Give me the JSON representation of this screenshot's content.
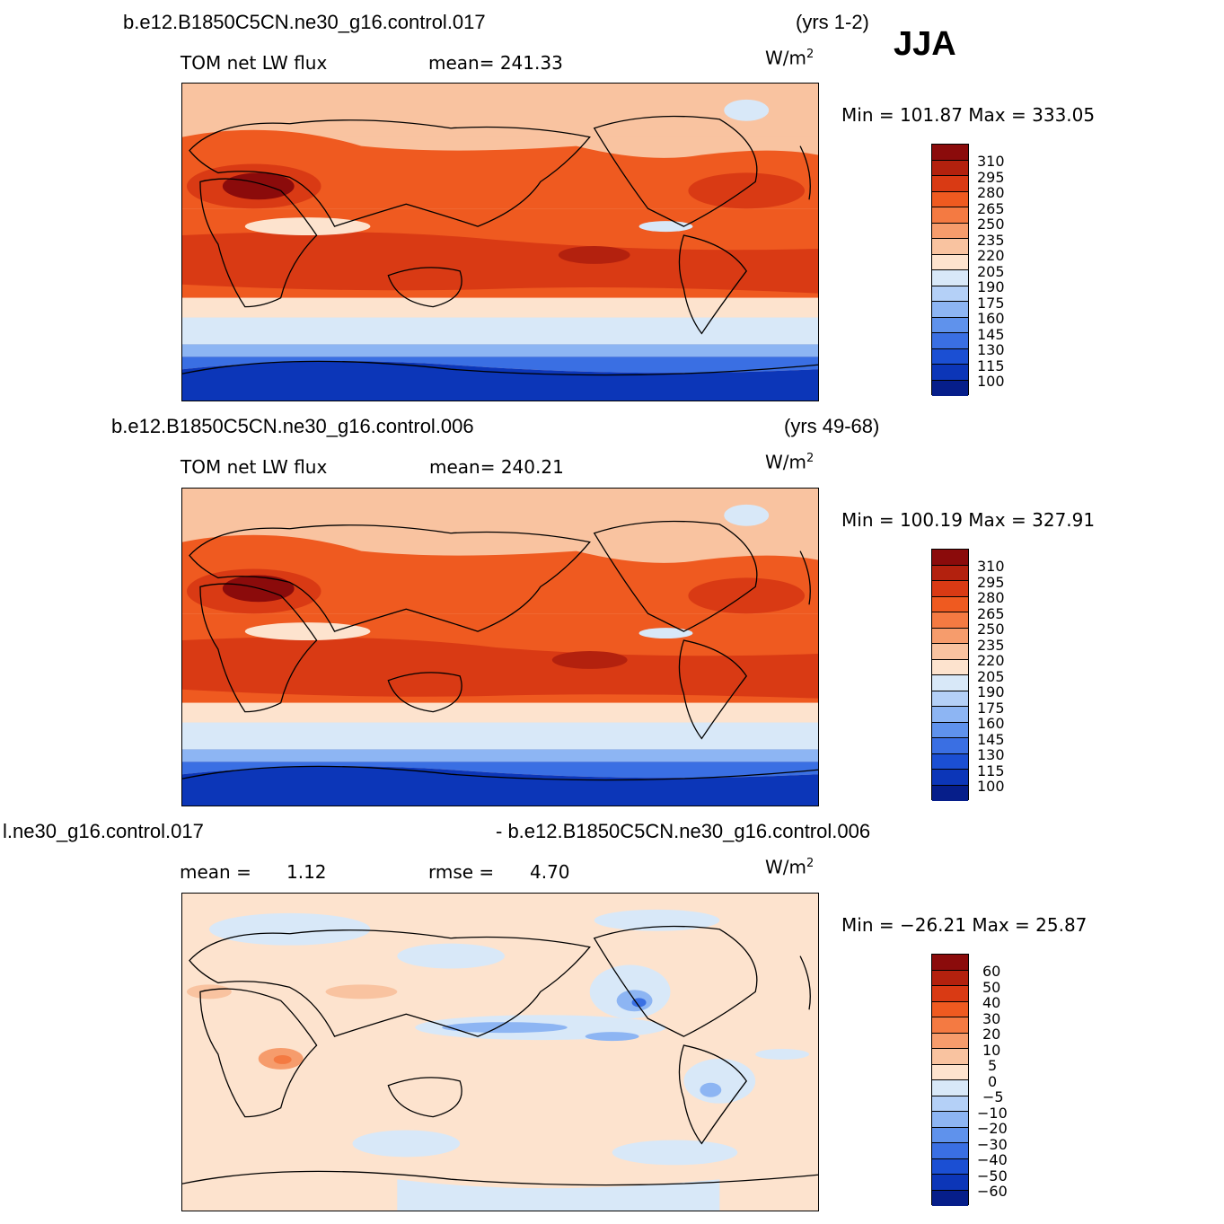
{
  "season": "JJA",
  "units_base": "W/m",
  "units_exp": "2",
  "panels": [
    {
      "case": "b.e12.B1850C5CN.ne30_g16.control.017",
      "years": "(yrs 1-2)",
      "left_label": "TOM net LW flux",
      "stat_label": "mean= 241.33",
      "minmax": "Min = 101.87 Max = 333.05",
      "colorbar_labels": [
        "310",
        "295",
        "280",
        "265",
        "250",
        "235",
        "220",
        "205",
        "190",
        "175",
        "160",
        "145",
        "130",
        "115",
        "100"
      ],
      "colors": [
        "#8b0b0b",
        "#b3210e",
        "#d93a14",
        "#ef5a20",
        "#f47a42",
        "#f69c6c",
        "#f9c3a0",
        "#fde3ce",
        "#d8e8f8",
        "#b4d0f7",
        "#8db5f3",
        "#5f92ec",
        "#3a6fe3",
        "#1b4fd3",
        "#0c36b8",
        "#061e8a"
      ]
    },
    {
      "case": "b.e12.B1850C5CN.ne30_g16.control.006",
      "years": "(yrs 49-68)",
      "left_label": "TOM net LW flux",
      "stat_label": "mean= 240.21",
      "minmax": "Min = 100.19 Max = 327.91",
      "colorbar_labels": [
        "310",
        "295",
        "280",
        "265",
        "250",
        "235",
        "220",
        "205",
        "190",
        "175",
        "160",
        "145",
        "130",
        "115",
        "100"
      ],
      "colors": [
        "#8b0b0b",
        "#b3210e",
        "#d93a14",
        "#ef5a20",
        "#f47a42",
        "#f69c6c",
        "#f9c3a0",
        "#fde3ce",
        "#d8e8f8",
        "#b4d0f7",
        "#8db5f3",
        "#5f92ec",
        "#3a6fe3",
        "#1b4fd3",
        "#0c36b8",
        "#061e8a"
      ]
    },
    {
      "case_left": "l.ne30_g16.control.017",
      "case_right": "- b.e12.B1850C5CN.ne30_g16.control.006",
      "mean_label": "mean =",
      "mean_value": "1.12",
      "rmse_label": "rmse =",
      "rmse_value": "4.70",
      "minmax": "Min = −26.21 Max =  25.87",
      "colorbar_labels": [
        "60",
        "50",
        "40",
        "30",
        "20",
        "10",
        "5",
        "0",
        "−5",
        "−10",
        "−20",
        "−30",
        "−40",
        "−50",
        "−60"
      ],
      "colors": [
        "#8b0b0b",
        "#b3210e",
        "#d93a14",
        "#ef5a20",
        "#f47a42",
        "#f69c6c",
        "#f9c3a0",
        "#fde3ce",
        "#d8e8f8",
        "#b4d0f7",
        "#8db5f3",
        "#5f92ec",
        "#3a6fe3",
        "#1b4fd3",
        "#0c36b8",
        "#061e8a"
      ]
    }
  ]
}
